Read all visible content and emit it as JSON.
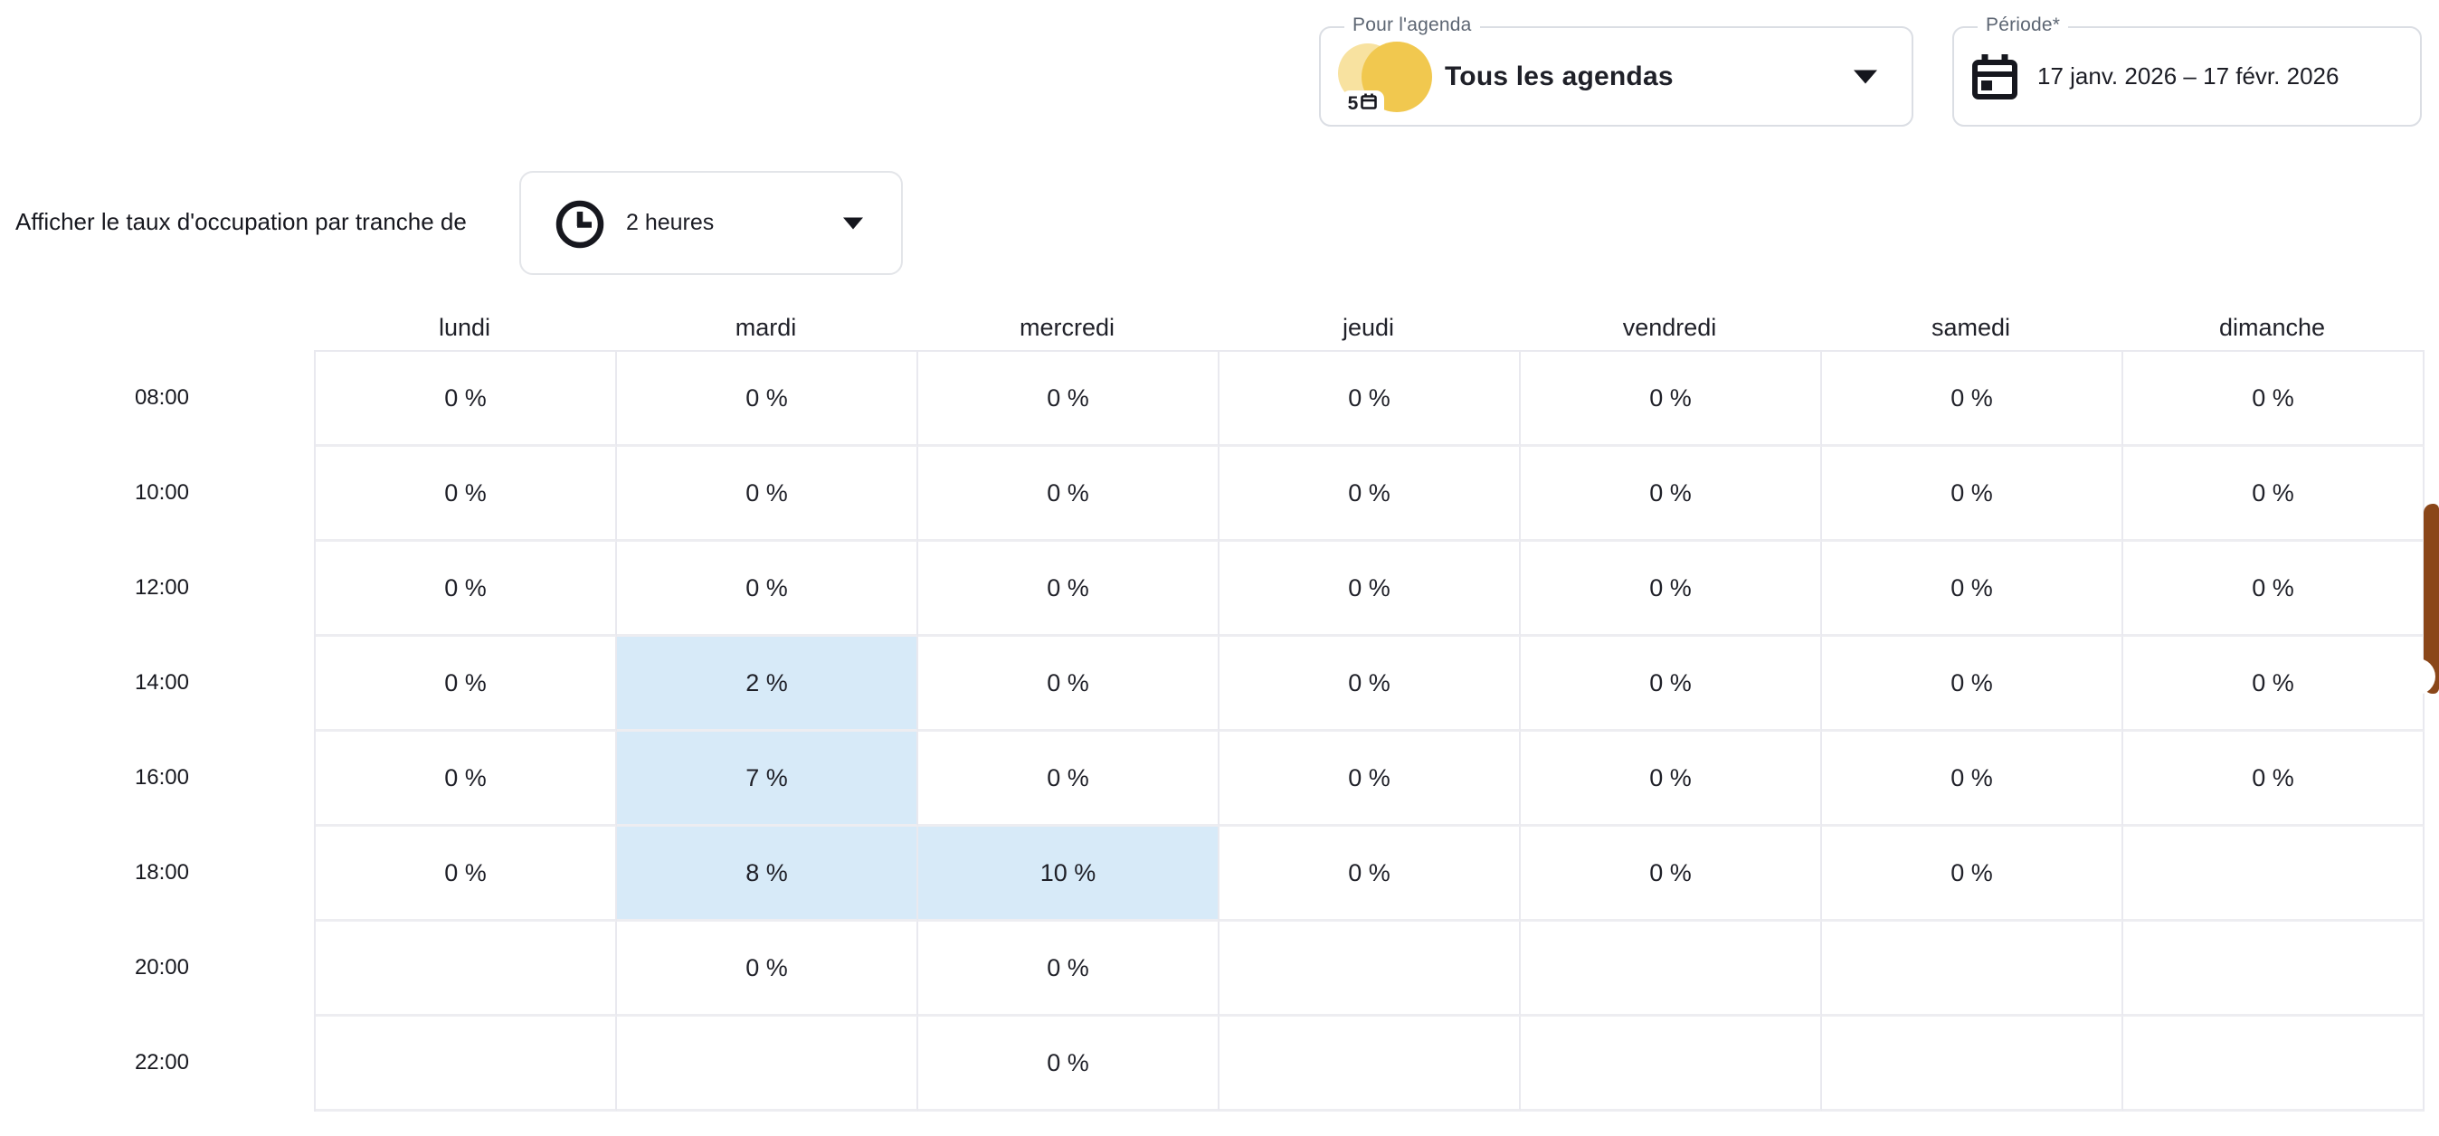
{
  "filters": {
    "agenda": {
      "label": "Pour l'agenda",
      "value": "Tous les agendas",
      "badge_count": "5"
    },
    "periode": {
      "label": "Période*",
      "value": "17 janv. 2026 – 17 févr. 2026"
    }
  },
  "granularity": {
    "label": "Afficher le taux d'occupation par tranche de",
    "value": "2 heures"
  },
  "table": {
    "columns": [
      "lundi",
      "mardi",
      "mercredi",
      "jeudi",
      "vendredi",
      "samedi",
      "dimanche"
    ],
    "rows": [
      {
        "time": "08:00",
        "cells": [
          {
            "value": "0 %"
          },
          {
            "value": "0 %"
          },
          {
            "value": "0 %"
          },
          {
            "value": "0 %"
          },
          {
            "value": "0 %"
          },
          {
            "value": "0 %"
          },
          {
            "value": "0 %"
          }
        ]
      },
      {
        "time": "10:00",
        "cells": [
          {
            "value": "0 %"
          },
          {
            "value": "0 %"
          },
          {
            "value": "0 %"
          },
          {
            "value": "0 %"
          },
          {
            "value": "0 %"
          },
          {
            "value": "0 %"
          },
          {
            "value": "0 %"
          }
        ]
      },
      {
        "time": "12:00",
        "cells": [
          {
            "value": "0 %"
          },
          {
            "value": "0 %"
          },
          {
            "value": "0 %"
          },
          {
            "value": "0 %"
          },
          {
            "value": "0 %"
          },
          {
            "value": "0 %"
          },
          {
            "value": "0 %"
          }
        ]
      },
      {
        "time": "14:00",
        "cells": [
          {
            "value": "0 %"
          },
          {
            "value": "2 %",
            "highlighted": true
          },
          {
            "value": "0 %"
          },
          {
            "value": "0 %"
          },
          {
            "value": "0 %"
          },
          {
            "value": "0 %"
          },
          {
            "value": "0 %"
          }
        ]
      },
      {
        "time": "16:00",
        "cells": [
          {
            "value": "0 %"
          },
          {
            "value": "7 %",
            "highlighted": true
          },
          {
            "value": "0 %"
          },
          {
            "value": "0 %"
          },
          {
            "value": "0 %"
          },
          {
            "value": "0 %"
          },
          {
            "value": "0 %"
          }
        ]
      },
      {
        "time": "18:00",
        "cells": [
          {
            "value": "0 %"
          },
          {
            "value": "8 %",
            "highlighted": true
          },
          {
            "value": "10 %",
            "highlighted": true
          },
          {
            "value": "0 %"
          },
          {
            "value": "0 %"
          },
          {
            "value": "0 %"
          },
          null
        ]
      },
      {
        "time": "20:00",
        "cells": [
          null,
          {
            "value": "0 %"
          },
          {
            "value": "0 %"
          },
          null,
          null,
          null,
          null
        ]
      },
      {
        "time": "22:00",
        "cells": [
          null,
          null,
          {
            "value": "0 %"
          },
          null,
          null,
          null,
          null
        ]
      }
    ]
  },
  "colors": {
    "highlight": "#d7eaf8",
    "scrollbar": "#8a4619",
    "avatar_light": "#f8e2a0",
    "avatar_dark": "#f1c84f"
  }
}
